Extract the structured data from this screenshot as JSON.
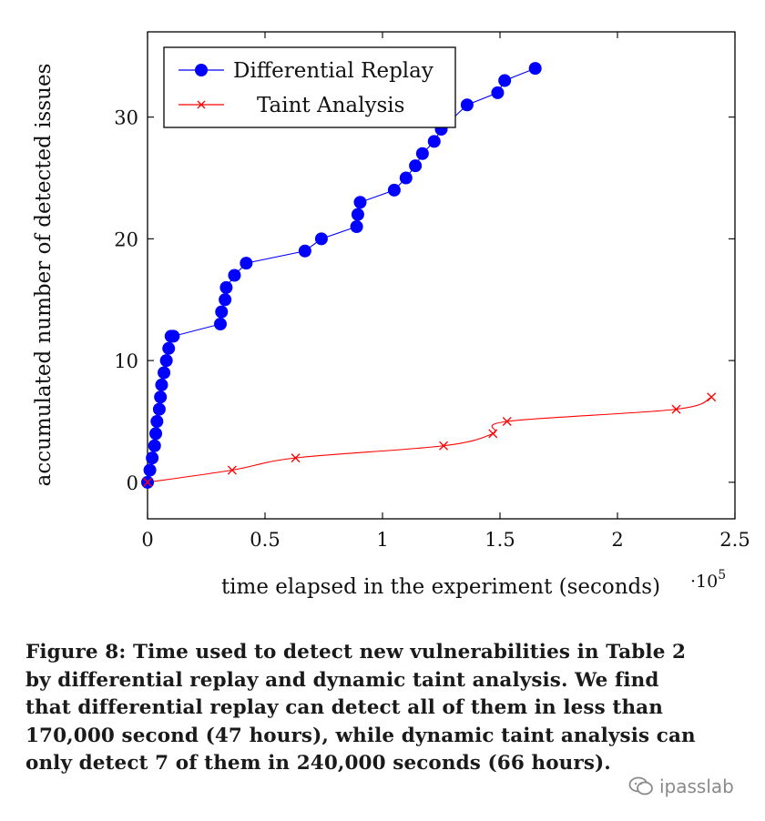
{
  "chart_data": {
    "type": "line",
    "title": "",
    "xlabel": "time elapsed in the experiment (seconds)",
    "ylabel": "accumulated number of detected issues",
    "x_scale_label": "·10",
    "x_scale_exponent": "5",
    "xlim": [
      0,
      2.5
    ],
    "ylim": [
      -3,
      37
    ],
    "xticks": [
      0,
      0.5,
      1,
      1.5,
      2,
      2.5
    ],
    "xtick_labels": [
      "0",
      "0.5",
      "1",
      "1.5",
      "2",
      "2.5"
    ],
    "yticks": [
      0,
      10,
      20,
      30
    ],
    "ytick_labels": [
      "0",
      "10",
      "20",
      "30"
    ],
    "legend_position": "top-left",
    "series": [
      {
        "name": "Differential Replay",
        "color": "#0000ff",
        "marker": "circle",
        "x": [
          0.0,
          0.01,
          0.02,
          0.03,
          0.035,
          0.04,
          0.05,
          0.055,
          0.06,
          0.07,
          0.08,
          0.09,
          0.1,
          0.11,
          0.31,
          0.315,
          0.33,
          0.335,
          0.37,
          0.42,
          0.67,
          0.74,
          0.89,
          0.895,
          0.905,
          1.05,
          1.1,
          1.14,
          1.17,
          1.22,
          1.25,
          1.36,
          1.49,
          1.52,
          1.65
        ],
        "y": [
          0,
          1,
          2,
          3,
          4,
          5,
          6,
          7,
          8,
          9,
          10,
          11,
          12,
          12,
          13,
          14,
          15,
          16,
          17,
          18,
          19,
          20,
          21,
          22,
          23,
          24,
          25,
          26,
          27,
          28,
          29,
          31,
          32,
          33,
          34
        ]
      },
      {
        "name": "Taint Analysis",
        "color": "#ff0000",
        "marker": "x",
        "x": [
          0.0,
          0.36,
          0.63,
          1.26,
          1.47,
          1.53,
          2.25,
          2.4
        ],
        "y": [
          0,
          1,
          2,
          3,
          4,
          5,
          6,
          7
        ]
      }
    ]
  },
  "caption": {
    "lines": [
      "Figure 8: Time used to detect new vulnerabilities in Table 2",
      "by differential replay and dynamic taint analysis. We find",
      "that differential replay can detect all of them in less than",
      "170,000 second (47 hours), while dynamic taint analysis can",
      "only detect 7 of them in 240,000 seconds (66 hours)."
    ]
  },
  "watermark": {
    "text": "ipasslab"
  }
}
